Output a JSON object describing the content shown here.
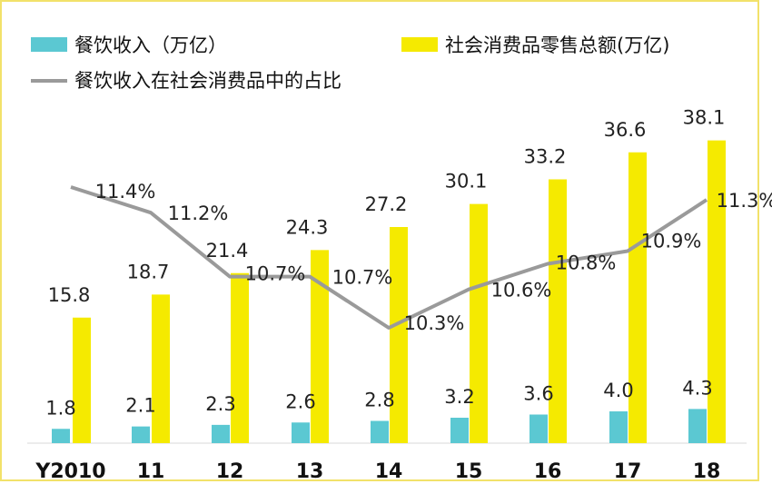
{
  "chart_data": {
    "type": "bar",
    "categories": [
      "Y2010",
      "11",
      "12",
      "13",
      "14",
      "15",
      "16",
      "17",
      "18"
    ],
    "series": [
      {
        "name": "餐饮收入（万亿）",
        "type": "bar",
        "color": "#5bc8d2",
        "values": [
          1.8,
          2.1,
          2.3,
          2.6,
          2.8,
          3.2,
          3.6,
          4.0,
          4.3
        ],
        "labels": [
          "1.8",
          "2.1",
          "2.3",
          "2.6",
          "2.8",
          "3.2",
          "3.6",
          "4.0",
          "4.3"
        ]
      },
      {
        "name": "社会消费品零售总额(万亿)",
        "type": "bar",
        "color": "#f5ea00",
        "values": [
          15.8,
          18.7,
          21.4,
          24.3,
          27.2,
          30.1,
          33.2,
          36.6,
          38.1
        ],
        "labels": [
          "15.8",
          "18.7",
          "21.4",
          "24.3",
          "27.2",
          "30.1",
          "33.2",
          "36.6",
          "38.1"
        ]
      },
      {
        "name": "餐饮收入在社会消费品中的占比",
        "type": "line",
        "color": "#9a9a9a",
        "values": [
          11.4,
          11.2,
          10.7,
          10.7,
          10.3,
          10.6,
          10.8,
          10.9,
          11.3
        ],
        "labels": [
          "11.4%",
          "11.2%",
          "10.7%",
          "10.7%",
          "10.3%",
          "10.6%",
          "10.8%",
          "10.9%",
          "11.3%"
        ]
      }
    ],
    "legend_position": "top",
    "grid": false
  }
}
